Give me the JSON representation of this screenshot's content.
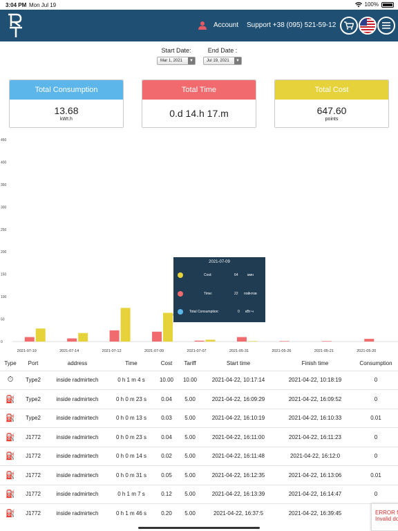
{
  "statusbar": {
    "time": "3:04 PM",
    "date": "Mon Jul 19",
    "battery": "100%"
  },
  "header": {
    "logo_text": "RT",
    "account": "Account",
    "support": "Support +38 (095) 521-59-12",
    "icons": [
      "user-icon",
      "cart-icon",
      "us-flag-icon",
      "menu-icon"
    ],
    "color": "#1f4f73"
  },
  "filters": {
    "start_label": "Start Date:",
    "start_value": "Mar 1, 2021",
    "end_label": "End Date :",
    "end_value": "Jul 19, 2021"
  },
  "cards": {
    "consumption": {
      "title": "Total Consumption",
      "value": "13.68",
      "unit": "kWt.h",
      "color": "#5cb6ea"
    },
    "time": {
      "title": "Total Time",
      "value": "0.d 14.h 17.m",
      "color": "#f16a6e"
    },
    "cost": {
      "title": "Total Cost",
      "value": "647.60",
      "unit": "points",
      "color": "#e6d23b"
    }
  },
  "chart_data": {
    "type": "bar",
    "categories": [
      "2021-07-19",
      "2021-07-14",
      "2021-07-12",
      "2021-07-09",
      "2021-07-07",
      "2021-05-31",
      "2021-05-26",
      "2021-05-21",
      "2021-05-20"
    ],
    "x_tick_labels": [
      "2021-07-19",
      "2021-07-14",
      "2021-07-12",
      "2021-07-09",
      "2021-07-07",
      "2021-05-31",
      "2021-05-26",
      "2021-05-21",
      "2021-05-20"
    ],
    "series": [
      {
        "color": "#5cb6ea",
        "values": [
          0,
          0,
          0,
          0,
          0,
          0,
          0,
          0,
          0
        ]
      },
      {
        "color": "#f16a6e",
        "values": [
          10,
          7,
          25,
          22,
          2,
          10,
          1,
          1,
          6
        ]
      },
      {
        "color": "#e6d23b",
        "values": [
          29,
          19,
          75,
          64,
          4,
          1,
          0,
          0,
          0
        ]
      }
    ],
    "ylim": [
      0,
      450
    ],
    "yticks": [
      0,
      50,
      100,
      150,
      200,
      250,
      300,
      350,
      400,
      450
    ],
    "grid": false,
    "tooltip": {
      "date": "2021-07-09",
      "rows": [
        {
          "label": "Cost:",
          "value": "64",
          "unit": "мин",
          "color": "#e6d23b"
        },
        {
          "label": "Time:",
          "value": "22",
          "unit": "пойнтов",
          "color": "#f16a6e"
        },
        {
          "label": "Total Consumption:",
          "value": "0",
          "unit": "кВт·ч",
          "color": "#5cb6ea"
        }
      ]
    }
  },
  "table": {
    "headers": [
      "Type",
      "Port",
      "address",
      "Time",
      "Cost",
      "Tariff",
      "Start time",
      "Finish time",
      "Consumption"
    ],
    "rows": [
      {
        "icon": "stopwatch-icon",
        "port": "Type2",
        "address": "inside radmirtech",
        "time": "0 h 1 m 4 s",
        "cost": "10.00",
        "tariff": "10.00",
        "start": "2021-04-22, 10:17:14",
        "finish": "2021-04-22, 10:18:19",
        "consumption": "0"
      },
      {
        "icon": "charger-icon",
        "port": "Type2",
        "address": "inside radmirtech",
        "time": "0 h 0 m 23 s",
        "cost": "0.04",
        "tariff": "5.00",
        "start": "2021-04-22, 16:09:29",
        "finish": "2021-04-22, 16:09:52",
        "consumption": "0"
      },
      {
        "icon": "charger-icon",
        "port": "Type2",
        "address": "inside radmirtech",
        "time": "0 h 0 m 13 s",
        "cost": "0.03",
        "tariff": "5.00",
        "start": "2021-04-22, 16:10:19",
        "finish": "2021-04-22, 16:10:33",
        "consumption": "0.01"
      },
      {
        "icon": "charger-icon",
        "port": "J1772",
        "address": "inside radmirtech",
        "time": "0 h 0 m 23 s",
        "cost": "0.04",
        "tariff": "5.00",
        "start": "2021-04-22, 16:11:00",
        "finish": "2021-04-22, 16:11:23",
        "consumption": "0"
      },
      {
        "icon": "charger-icon",
        "port": "J1772",
        "address": "inside radmirtech",
        "time": "0 h 0 m 14 s",
        "cost": "0.02",
        "tariff": "5.00",
        "start": "2021-04-22, 16:11:48",
        "finish": "2021-04-22, 16:12:0",
        "consumption": "0"
      },
      {
        "icon": "charger-icon",
        "port": "J1772",
        "address": "inside radmirtech",
        "time": "0 h 0 m 31 s",
        "cost": "0.05",
        "tariff": "5.00",
        "start": "2021-04-22, 16:12:35",
        "finish": "2021-04-22, 16:13:06",
        "consumption": "0.01"
      },
      {
        "icon": "charger-icon",
        "port": "J1772",
        "address": "inside radmirtech",
        "time": "0 h 1 m 7 s",
        "cost": "0.12",
        "tariff": "5.00",
        "start": "2021-04-22, 16:13:39",
        "finish": "2021-04-22, 16:14:47",
        "consumption": "0"
      },
      {
        "icon": "charger-icon",
        "port": "J1772",
        "address": "inside radmirtech",
        "time": "0 h 1 m 46 s",
        "cost": "0.20",
        "tariff": "5.00",
        "start": "2021-04-22, 16:37:5",
        "finish": "2021-04-22, 16:39:45",
        "consumption": "0"
      }
    ]
  },
  "error_toast": {
    "line1": "ERROR fo",
    "line2": "Invalid do"
  }
}
